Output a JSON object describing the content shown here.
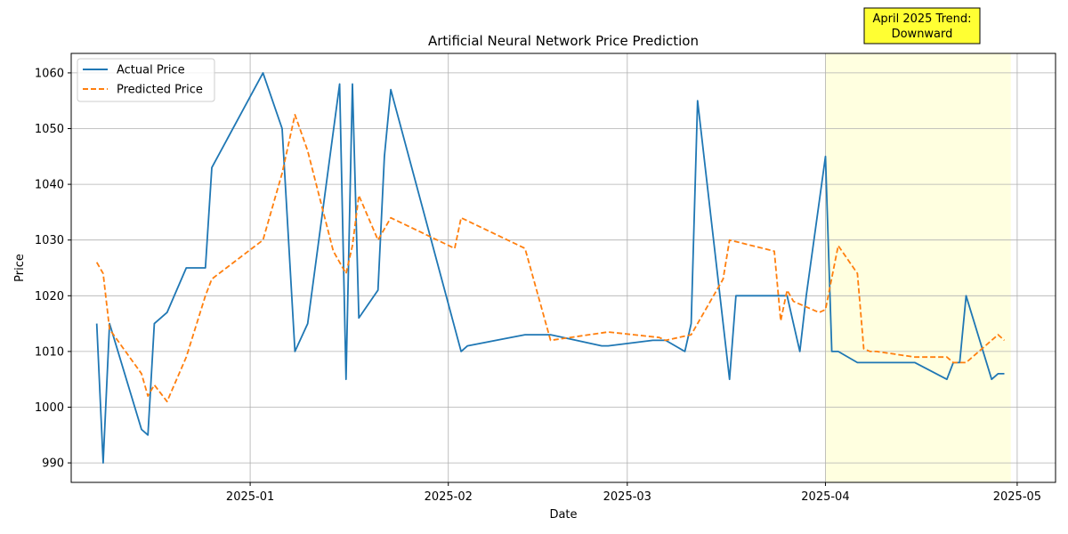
{
  "chart_data": {
    "type": "line",
    "title": "Artificial Neural Network Price Prediction",
    "xlabel": "Date",
    "ylabel": "Price",
    "xlim": [
      "2024-12-04",
      "2025-05-07"
    ],
    "ylim": [
      986.5,
      1063.5
    ],
    "x_ticks": [
      "2025-01-01",
      "2025-02-01",
      "2025-03-01",
      "2025-04-01",
      "2025-05-01"
    ],
    "x_tick_labels": [
      "2025-01",
      "2025-02",
      "2025-03",
      "2025-04",
      "2025-05"
    ],
    "y_ticks": [
      990,
      1000,
      1010,
      1020,
      1030,
      1040,
      1050,
      1060
    ],
    "y_tick_labels": [
      "990",
      "1000",
      "1010",
      "1020",
      "1030",
      "1040",
      "1050",
      "1060"
    ],
    "grid": true,
    "legend_position": "top-left",
    "highlight": {
      "x_start": "2025-04-01",
      "x_end": "2025-04-30",
      "color": "#ffffe0",
      "annotation": "April 2025 Trend:\nDownward",
      "annotation_lines": [
        "April 2025 Trend:",
        "Downward"
      ],
      "annotation_bg": "#ffff33"
    },
    "series": [
      {
        "name": "Actual Price",
        "color": "#1f77b4",
        "style": "solid",
        "points": [
          [
            "2024-12-08",
            1015
          ],
          [
            "2024-12-09",
            990
          ],
          [
            "2024-12-10",
            1015
          ],
          [
            "2024-12-15",
            996
          ],
          [
            "2024-12-16",
            995
          ],
          [
            "2024-12-17",
            1015
          ],
          [
            "2024-12-19",
            1017
          ],
          [
            "2024-12-22",
            1025
          ],
          [
            "2024-12-25",
            1025
          ],
          [
            "2024-12-26",
            1043
          ],
          [
            "2025-01-03",
            1060
          ],
          [
            "2025-01-06",
            1050
          ],
          [
            "2025-01-08",
            1010
          ],
          [
            "2025-01-10",
            1015
          ],
          [
            "2025-01-15",
            1058
          ],
          [
            "2025-01-16",
            1005
          ],
          [
            "2025-01-17",
            1058
          ],
          [
            "2025-01-18",
            1016
          ],
          [
            "2025-01-21",
            1021
          ],
          [
            "2025-01-22",
            1045
          ],
          [
            "2025-01-23",
            1057
          ],
          [
            "2025-02-03",
            1010
          ],
          [
            "2025-02-04",
            1011
          ],
          [
            "2025-02-13",
            1013
          ],
          [
            "2025-02-17",
            1013
          ],
          [
            "2025-02-25",
            1011
          ],
          [
            "2025-02-26",
            1011
          ],
          [
            "2025-03-05",
            1012
          ],
          [
            "2025-03-07",
            1012
          ],
          [
            "2025-03-10",
            1010
          ],
          [
            "2025-03-11",
            1015
          ],
          [
            "2025-03-12",
            1055
          ],
          [
            "2025-03-17",
            1005
          ],
          [
            "2025-03-18",
            1020
          ],
          [
            "2025-03-26",
            1020
          ],
          [
            "2025-03-27",
            1015
          ],
          [
            "2025-03-28",
            1010
          ],
          [
            "2025-03-29",
            1020
          ],
          [
            "2025-04-01",
            1045
          ],
          [
            "2025-04-02",
            1010
          ],
          [
            "2025-04-03",
            1010
          ],
          [
            "2025-04-06",
            1008
          ],
          [
            "2025-04-11",
            1008
          ],
          [
            "2025-04-15",
            1008
          ],
          [
            "2025-04-20",
            1005
          ],
          [
            "2025-04-21",
            1008
          ],
          [
            "2025-04-22",
            1008
          ],
          [
            "2025-04-23",
            1020
          ],
          [
            "2025-04-27",
            1005
          ],
          [
            "2025-04-28",
            1006
          ],
          [
            "2025-04-29",
            1006
          ]
        ]
      },
      {
        "name": "Predicted Price",
        "color": "#ff7f0e",
        "style": "dashed",
        "points": [
          [
            "2024-12-08",
            1026
          ],
          [
            "2024-12-09",
            1024
          ],
          [
            "2024-12-10",
            1014
          ],
          [
            "2024-12-15",
            1006
          ],
          [
            "2024-12-16",
            1002
          ],
          [
            "2024-12-17",
            1004
          ],
          [
            "2024-12-19",
            1001
          ],
          [
            "2024-12-22",
            1009
          ],
          [
            "2024-12-25",
            1020
          ],
          [
            "2024-12-26",
            1023
          ],
          [
            "2025-01-03",
            1030
          ],
          [
            "2025-01-06",
            1042
          ],
          [
            "2025-01-08",
            1052.5
          ],
          [
            "2025-01-10",
            1046
          ],
          [
            "2025-01-14",
            1028
          ],
          [
            "2025-01-15",
            1026
          ],
          [
            "2025-01-16",
            1024
          ],
          [
            "2025-01-17",
            1029
          ],
          [
            "2025-01-18",
            1038
          ],
          [
            "2025-01-21",
            1030
          ],
          [
            "2025-01-23",
            1034
          ],
          [
            "2025-02-02",
            1028.5
          ],
          [
            "2025-02-03",
            1034
          ],
          [
            "2025-02-13",
            1028.5
          ],
          [
            "2025-02-17",
            1012
          ],
          [
            "2025-02-26",
            1013.5
          ],
          [
            "2025-03-06",
            1012.5
          ],
          [
            "2025-03-07",
            1012
          ],
          [
            "2025-03-11",
            1013
          ],
          [
            "2025-03-16",
            1023
          ],
          [
            "2025-03-17",
            1030
          ],
          [
            "2025-03-24",
            1028
          ],
          [
            "2025-03-25",
            1015.5
          ],
          [
            "2025-03-26",
            1021
          ],
          [
            "2025-03-27",
            1019
          ],
          [
            "2025-03-31",
            1017
          ],
          [
            "2025-04-01",
            1017.5
          ],
          [
            "2025-04-03",
            1029
          ],
          [
            "2025-04-06",
            1024
          ],
          [
            "2025-04-07",
            1010.5
          ],
          [
            "2025-04-08",
            1010
          ],
          [
            "2025-04-09",
            1010
          ],
          [
            "2025-04-15",
            1009
          ],
          [
            "2025-04-20",
            1009
          ],
          [
            "2025-04-21",
            1008
          ],
          [
            "2025-04-22",
            1008
          ],
          [
            "2025-04-23",
            1008
          ],
          [
            "2025-04-28",
            1013
          ],
          [
            "2025-04-29",
            1012
          ]
        ]
      }
    ]
  }
}
